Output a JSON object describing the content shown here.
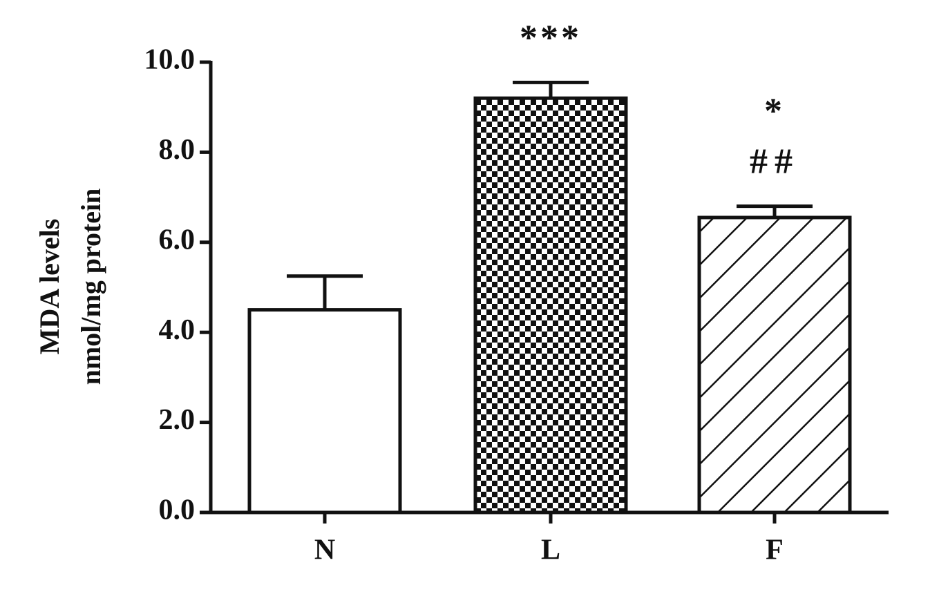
{
  "chart_data": {
    "type": "bar",
    "y_label": [
      "MDA levels",
      "nmol/mg protein"
    ],
    "categories": [
      "N",
      "L",
      "F"
    ],
    "values": [
      4.5,
      9.2,
      6.55
    ],
    "errors": [
      0.75,
      0.35,
      0.25
    ],
    "patterns": [
      "none",
      "checker",
      "hatch"
    ],
    "color": "#111111",
    "ylim": [
      0,
      10
    ],
    "yticks": [
      {
        "value": 0,
        "label": "0.0"
      },
      {
        "value": 2,
        "label": "2.0"
      },
      {
        "value": 4,
        "label": "4.0"
      },
      {
        "value": 6,
        "label": "6.0"
      },
      {
        "value": 8,
        "label": "8.0"
      },
      {
        "value": 10,
        "label": "10.0"
      }
    ],
    "annotations": [
      {
        "category": "L",
        "text": "***"
      },
      {
        "category": "F",
        "text": "*"
      },
      {
        "category": "F",
        "text": "##"
      }
    ],
    "grid": false
  }
}
